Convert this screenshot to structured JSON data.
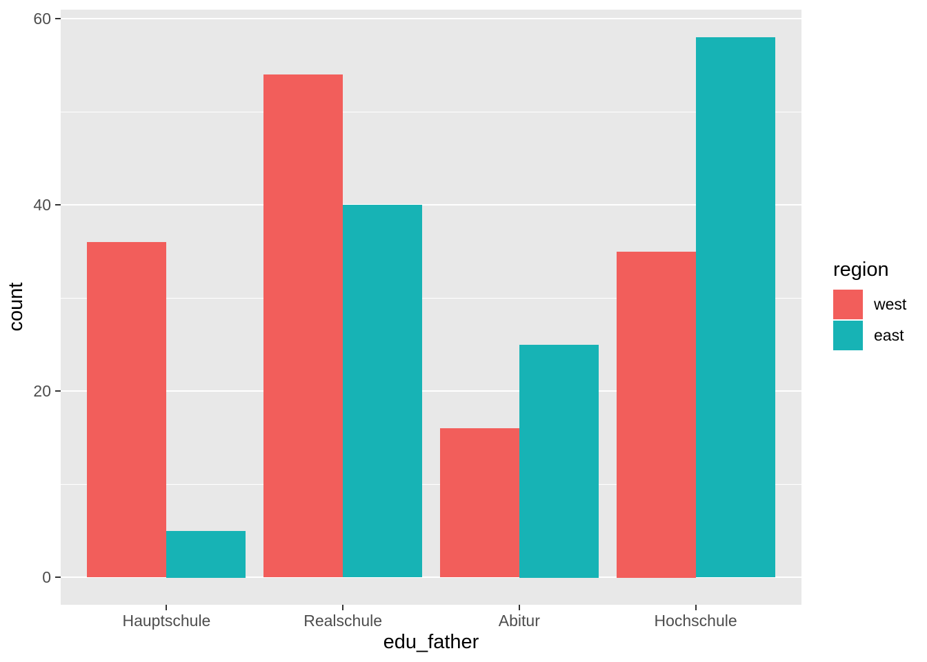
{
  "chart_data": {
    "type": "bar",
    "grouping": "dodge",
    "title": "",
    "xlabel": "edu_father",
    "ylabel": "count",
    "categories": [
      "Hauptschule",
      "Realschule",
      "Abitur",
      "Hochschule"
    ],
    "series": [
      {
        "name": "west",
        "color": "#F25E5B",
        "values": [
          36,
          54,
          16,
          35
        ]
      },
      {
        "name": "east",
        "color": "#17B3B5",
        "values": [
          5,
          40,
          25,
          58
        ]
      }
    ],
    "legend_title": "region",
    "legend_position": "right",
    "y_ticks": [
      0,
      20,
      40,
      60
    ],
    "y_minor_ticks": [
      10,
      30,
      50
    ],
    "ylim": [
      0,
      60
    ],
    "grid": "on",
    "panel_bg": "#E8E8E8",
    "grid_color": "#FFFFFF",
    "tick_color": "#333333",
    "axis_text_color": "#4D4D4D"
  }
}
